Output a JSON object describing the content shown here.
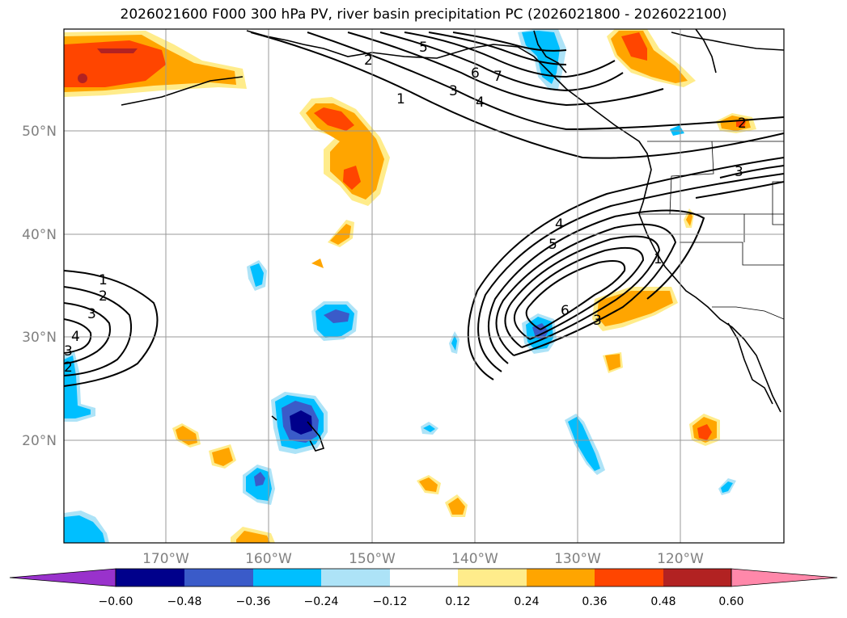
{
  "title": "2026021600 F000 300 hPa PV, river basin precipitation PC (2026021800 - 2026022100)",
  "map": {
    "lat_labels": [
      "50°N",
      "40°N",
      "30°N",
      "20°N"
    ],
    "lon_labels": [
      "170°W",
      "160°W",
      "150°W",
      "140°W",
      "130°W",
      "120°W"
    ],
    "contour_labels": [
      "1",
      "2",
      "3",
      "4",
      "5",
      "6",
      "7",
      "1",
      "2",
      "3",
      "4",
      "5",
      "6",
      "3",
      "2",
      "3",
      "1",
      "2",
      "3",
      "4"
    ]
  },
  "colorbar": {
    "colors": [
      "#9932CC",
      "#00008B",
      "#3A5BC9",
      "#00BFFF",
      "#ADE3F7",
      "#FFFFFF",
      "#FFEC8B",
      "#FFA500",
      "#FF4500",
      "#B22222",
      "#FF88AA"
    ],
    "tick_labels": [
      "−0.60",
      "−0.48",
      "−0.36",
      "−0.24",
      "−0.12",
      "0.12",
      "0.24",
      "0.36",
      "0.48",
      "0.60"
    ]
  }
}
